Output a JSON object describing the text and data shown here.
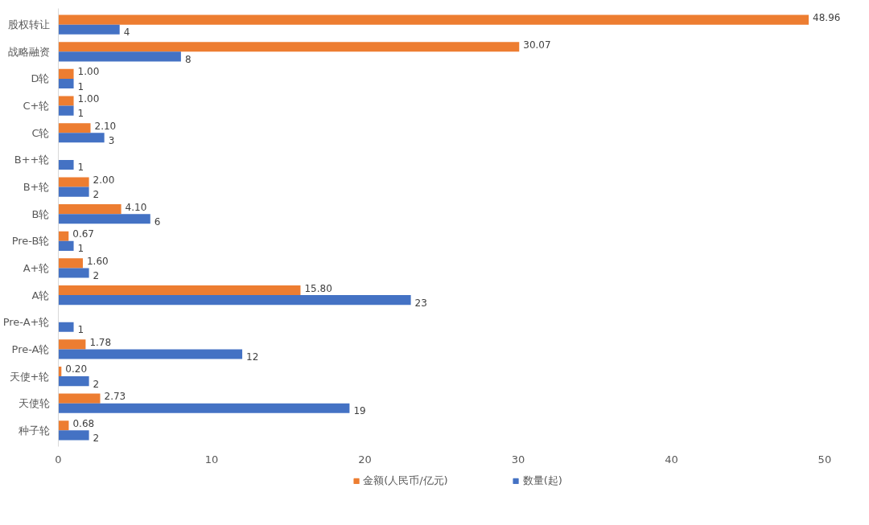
{
  "chart_data": {
    "type": "bar",
    "orientation": "horizontal",
    "categories": [
      "股权转让",
      "战略融资",
      "D轮",
      "C+轮",
      "C轮",
      "B++轮",
      "B+轮",
      "B轮",
      "Pre-B轮",
      "A+轮",
      "A轮",
      "Pre-A+轮",
      "Pre-A轮",
      "天使+轮",
      "天使轮",
      "种子轮"
    ],
    "series": [
      {
        "name": "金额(人民币/亿元)",
        "color": "#ed7d31",
        "values": [
          48.96,
          30.07,
          1.0,
          1.0,
          2.1,
          null,
          2.0,
          4.1,
          0.67,
          1.6,
          15.8,
          null,
          1.78,
          0.2,
          2.73,
          0.68
        ],
        "value_labels": [
          "48.96",
          "30.07",
          "1.00",
          "1.00",
          "2.10",
          null,
          "2.00",
          "4.10",
          "0.67",
          "1.60",
          "15.80",
          null,
          "1.78",
          "0.20",
          "2.73",
          "0.68"
        ]
      },
      {
        "name": "数量(起)",
        "color": "#4472c4",
        "values": [
          4,
          8,
          1,
          1,
          3,
          1,
          2,
          6,
          1,
          2,
          23,
          1,
          12,
          2,
          19,
          2
        ],
        "value_labels": [
          "4",
          "8",
          "1",
          "1",
          "3",
          "1",
          "2",
          "6",
          "1",
          "2",
          "23",
          "1",
          "12",
          "2",
          "19",
          "2"
        ]
      }
    ],
    "xlim": [
      0,
      50
    ],
    "xticks": [
      0,
      10,
      20,
      30,
      40,
      50
    ],
    "grid": false,
    "legend": "bottom"
  }
}
